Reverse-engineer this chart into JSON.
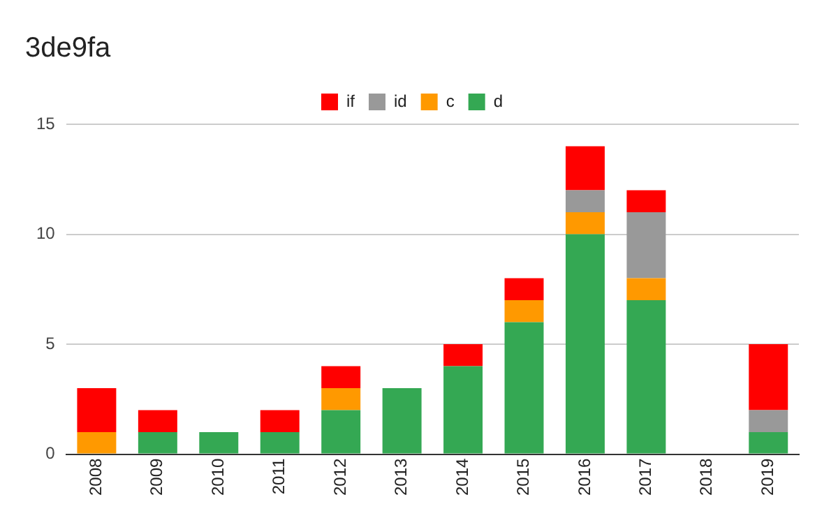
{
  "chart_data": {
    "type": "bar",
    "title": "3de9fa",
    "stacked": true,
    "categories": [
      "2008",
      "2009",
      "2010",
      "2011",
      "2012",
      "2013",
      "2014",
      "2015",
      "2016",
      "2017",
      "2018",
      "2019"
    ],
    "series": [
      {
        "name": "d",
        "color": "#34a853",
        "values": [
          0,
          1,
          1,
          1,
          2,
          3,
          4,
          6,
          10,
          7,
          0,
          1
        ]
      },
      {
        "name": "c",
        "color": "#ff9900",
        "values": [
          1,
          0,
          0,
          0,
          1,
          0,
          0,
          1,
          1,
          1,
          0,
          0
        ]
      },
      {
        "name": "id",
        "color": "#999999",
        "values": [
          0,
          0,
          0,
          0,
          0,
          0,
          0,
          0,
          1,
          3,
          0,
          1
        ]
      },
      {
        "name": "if",
        "color": "#ff0000",
        "values": [
          2,
          1,
          0,
          1,
          1,
          0,
          1,
          1,
          2,
          1,
          0,
          3
        ]
      }
    ],
    "ylim": [
      0,
      15
    ],
    "yticks": [
      0,
      5,
      10,
      15
    ],
    "grid": "y",
    "legend": "top"
  }
}
